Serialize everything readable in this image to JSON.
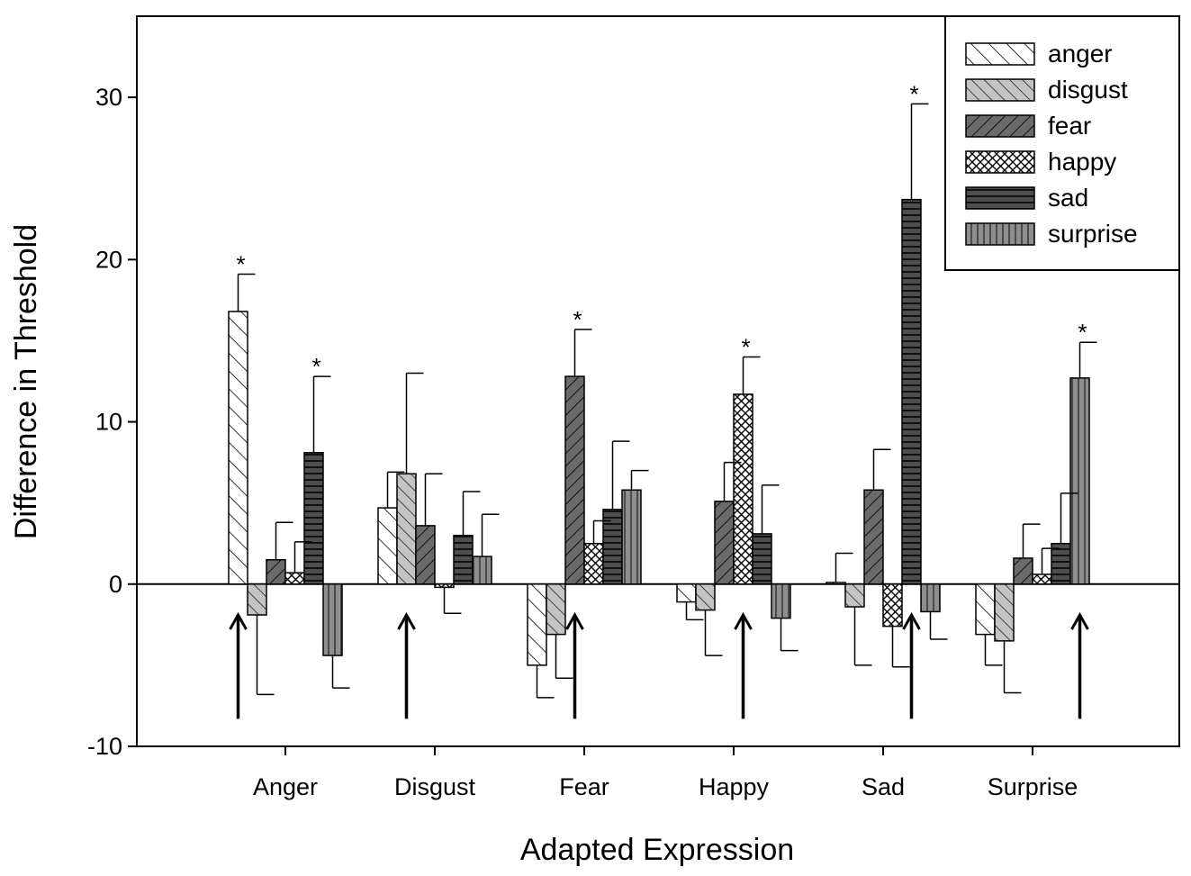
{
  "chart_data": {
    "type": "bar",
    "xlabel": "Adapted Expression",
    "ylabel": "Difference in Threshold",
    "ylim": [
      -10,
      35
    ],
    "yticks": [
      -10,
      0,
      10,
      20,
      30
    ],
    "legend_position": "top-right",
    "grid": false,
    "categories": [
      "Anger",
      "Disgust",
      "Fear",
      "Happy",
      "Sad",
      "Surprise"
    ],
    "series": [
      {
        "name": "anger",
        "pattern": "diag-fwd",
        "color": "#ffffff",
        "values": [
          16.8,
          4.7,
          -5.0,
          -1.1,
          0.1,
          -3.1
        ],
        "errors": [
          2.3,
          2.2,
          2.0,
          1.1,
          1.8,
          1.9
        ]
      },
      {
        "name": "disgust",
        "pattern": "diag-fwd-gray",
        "color": "#bdbdbd",
        "values": [
          -1.9,
          6.8,
          -3.1,
          -1.6,
          -1.4,
          -3.5
        ],
        "errors": [
          4.9,
          6.2,
          2.7,
          2.8,
          3.6,
          3.2
        ]
      },
      {
        "name": "fear",
        "pattern": "diag-back-dark",
        "color": "#606060",
        "values": [
          1.5,
          3.6,
          12.8,
          5.1,
          5.8,
          1.6
        ],
        "errors": [
          2.3,
          3.2,
          2.9,
          2.4,
          2.5,
          2.1
        ]
      },
      {
        "name": "happy",
        "pattern": "crosshatch",
        "color": "#ffffff",
        "values": [
          0.7,
          -0.2,
          2.5,
          11.7,
          -2.6,
          0.6
        ],
        "errors": [
          1.9,
          1.6,
          1.4,
          2.3,
          2.5,
          1.6
        ]
      },
      {
        "name": "sad",
        "pattern": "horizontal-dark",
        "color": "#4a4a4a",
        "values": [
          8.1,
          3.0,
          4.6,
          3.1,
          23.7,
          2.5
        ],
        "errors": [
          4.7,
          2.7,
          4.2,
          3.0,
          5.9,
          3.1
        ]
      },
      {
        "name": "surprise",
        "pattern": "vertical-gray",
        "color": "#8a8a8a",
        "values": [
          -4.4,
          1.7,
          5.8,
          -2.1,
          -1.7,
          12.7
        ],
        "errors": [
          2.0,
          2.6,
          1.2,
          2.0,
          1.7,
          2.2
        ]
      }
    ],
    "significant": [
      {
        "category": "Anger",
        "series": "anger"
      },
      {
        "category": "Anger",
        "series": "sad"
      },
      {
        "category": "Fear",
        "series": "fear"
      },
      {
        "category": "Happy",
        "series": "happy"
      },
      {
        "category": "Sad",
        "series": "sad"
      },
      {
        "category": "Surprise",
        "series": "surprise"
      }
    ],
    "significance_marker": "*",
    "arrows": [
      "Anger",
      "Disgust",
      "Fear",
      "Happy",
      "Sad",
      "Surprise"
    ]
  }
}
